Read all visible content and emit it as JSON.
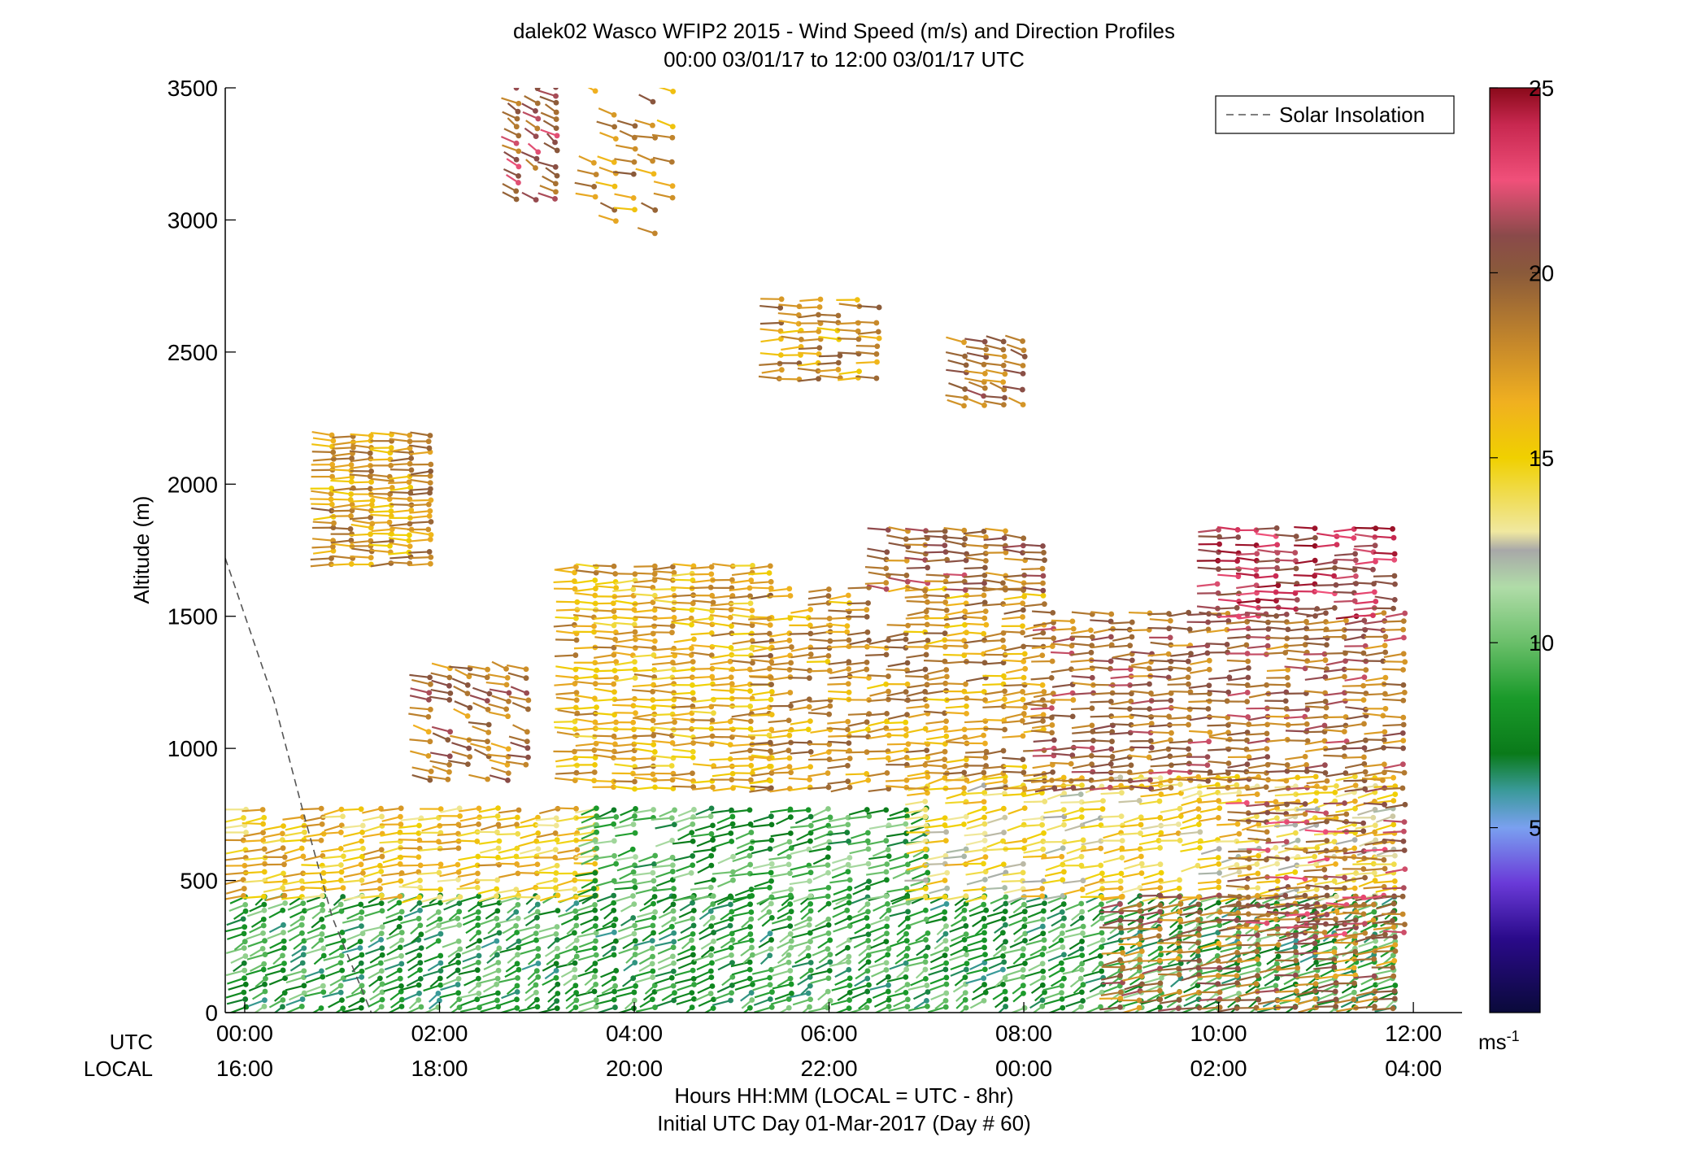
{
  "chart_data": {
    "type": "scatter",
    "subtype": "wind-barb profile",
    "title": "dalek02 Wasco WFIP2 2015 - Wind Speed (m/s) and Direction Profiles",
    "subtitle": "00:00 03/01/17 to 12:00 03/01/17  UTC",
    "xlabel": "Hours HH:MM  (LOCAL = UTC - 8hr)",
    "xlabel2": "Initial UTC Day 01-Mar-2017 (Day # 60)",
    "ylabel": "Altitude (m)",
    "x_row_labels": [
      "UTC",
      "LOCAL"
    ],
    "xlim_hours": [
      -0.2,
      12.5
    ],
    "ylim": [
      0,
      3500
    ],
    "x_ticks_utc": [
      "00:00",
      "02:00",
      "04:00",
      "06:00",
      "08:00",
      "10:00",
      "12:00"
    ],
    "x_ticks_local": [
      "16:00",
      "18:00",
      "20:00",
      "22:00",
      "00:00",
      "02:00",
      "04:00"
    ],
    "x_tick_hours": [
      0,
      2,
      4,
      6,
      8,
      10,
      12
    ],
    "y_ticks": [
      0,
      500,
      1000,
      1500,
      2000,
      2500,
      3000,
      3500
    ],
    "legend": {
      "entries": [
        "Solar Insolation"
      ],
      "position": "top-right",
      "style": "dashed"
    },
    "solar_insolation": {
      "x": [
        -0.2,
        0.3,
        0.6,
        0.9,
        1.3
      ],
      "y": [
        1720,
        1180,
        760,
        360,
        0
      ]
    },
    "colorbar": {
      "label": "ms-1",
      "ticks": [
        5,
        10,
        15,
        20,
        25
      ],
      "range": [
        0,
        25
      ],
      "stops": [
        {
          "v": 0,
          "c": "#0a0a3a"
        },
        {
          "v": 2,
          "c": "#2a0a8a"
        },
        {
          "v": 3.5,
          "c": "#6a3ad8"
        },
        {
          "v": 5,
          "c": "#7aa0f0"
        },
        {
          "v": 6,
          "c": "#3a9a9a"
        },
        {
          "v": 7,
          "c": "#0a7a1a"
        },
        {
          "v": 8.5,
          "c": "#1a9a2a"
        },
        {
          "v": 10,
          "c": "#6abf6a"
        },
        {
          "v": 11.5,
          "c": "#b0dca8"
        },
        {
          "v": 12.5,
          "c": "#a8a8a8"
        },
        {
          "v": 13,
          "c": "#f0e8a0"
        },
        {
          "v": 15,
          "c": "#f0d000"
        },
        {
          "v": 16.5,
          "c": "#f0b020"
        },
        {
          "v": 18,
          "c": "#c88a2a"
        },
        {
          "v": 20,
          "c": "#8a5a3a"
        },
        {
          "v": 21,
          "c": "#8a4a4a"
        },
        {
          "v": 22.5,
          "c": "#f0507a"
        },
        {
          "v": 24,
          "c": "#c82850"
        },
        {
          "v": 25,
          "c": "#8a0a1a"
        }
      ]
    },
    "barb_layers": [
      {
        "x0": 0.0,
        "x1": 11.9,
        "y0": 20,
        "y1": 440,
        "dy": 28,
        "dir": 225,
        "speed": 8.5,
        "fill": 0.95
      },
      {
        "x0": 0.0,
        "x1": 3.6,
        "y0": 440,
        "y1": 780,
        "dy": 30,
        "dir": 255,
        "speed": 15.5,
        "fill": 0.9
      },
      {
        "x0": 3.6,
        "x1": 7.0,
        "y0": 440,
        "y1": 780,
        "dy": 30,
        "dir": 240,
        "speed": 9.0,
        "fill": 0.8
      },
      {
        "x0": 7.0,
        "x1": 11.9,
        "y0": 440,
        "y1": 900,
        "dy": 30,
        "dir": 250,
        "speed": 14.5,
        "fill": 0.8
      },
      {
        "x0": 9.0,
        "x1": 11.9,
        "y0": 20,
        "y1": 440,
        "dy": 30,
        "dir": 255,
        "speed": 19.0,
        "fill": 0.85
      },
      {
        "x0": 10.3,
        "x1": 11.9,
        "y0": 300,
        "y1": 800,
        "dy": 35,
        "dir": 265,
        "speed": 20.5,
        "fill": 0.7
      },
      {
        "x0": 0.9,
        "x1": 1.9,
        "y0": 1700,
        "y1": 2200,
        "dy": 22,
        "dir": 270,
        "speed": 17.5,
        "fill": 0.95
      },
      {
        "x0": 1.9,
        "x1": 2.9,
        "y0": 880,
        "y1": 1300,
        "dy": 30,
        "dir": 300,
        "speed": 19.0,
        "fill": 0.7
      },
      {
        "x0": 3.4,
        "x1": 5.4,
        "y0": 850,
        "y1": 1700,
        "dy": 28,
        "dir": 270,
        "speed": 16.5,
        "fill": 0.9
      },
      {
        "x0": 5.4,
        "x1": 8.3,
        "y0": 850,
        "y1": 1620,
        "dy": 28,
        "dir": 262,
        "speed": 17.5,
        "fill": 0.75
      },
      {
        "x0": 6.6,
        "x1": 8.3,
        "y0": 1600,
        "y1": 1850,
        "dy": 28,
        "dir": 275,
        "speed": 19.5,
        "fill": 0.85
      },
      {
        "x0": 8.3,
        "x1": 11.9,
        "y0": 850,
        "y1": 1520,
        "dy": 30,
        "dir": 265,
        "speed": 19.5,
        "fill": 0.8
      },
      {
        "x0": 10.0,
        "x1": 11.9,
        "y0": 1500,
        "y1": 1850,
        "dy": 30,
        "dir": 270,
        "speed": 22.5,
        "fill": 0.85
      },
      {
        "x0": 5.5,
        "x1": 6.6,
        "y0": 2400,
        "y1": 2700,
        "dy": 30,
        "dir": 270,
        "speed": 17.5,
        "fill": 0.8
      },
      {
        "x0": 7.4,
        "x1": 8.0,
        "y0": 2300,
        "y1": 2560,
        "dy": 30,
        "dir": 300,
        "speed": 19.5,
        "fill": 0.8
      },
      {
        "x0": 2.8,
        "x1": 3.2,
        "y0": 3080,
        "y1": 3500,
        "dy": 30,
        "dir": 320,
        "speed": 20.5,
        "fill": 0.9
      },
      {
        "x0": 3.6,
        "x1": 4.5,
        "y0": 2950,
        "y1": 3500,
        "dy": 45,
        "dir": 300,
        "speed": 18.0,
        "fill": 0.45
      }
    ]
  }
}
